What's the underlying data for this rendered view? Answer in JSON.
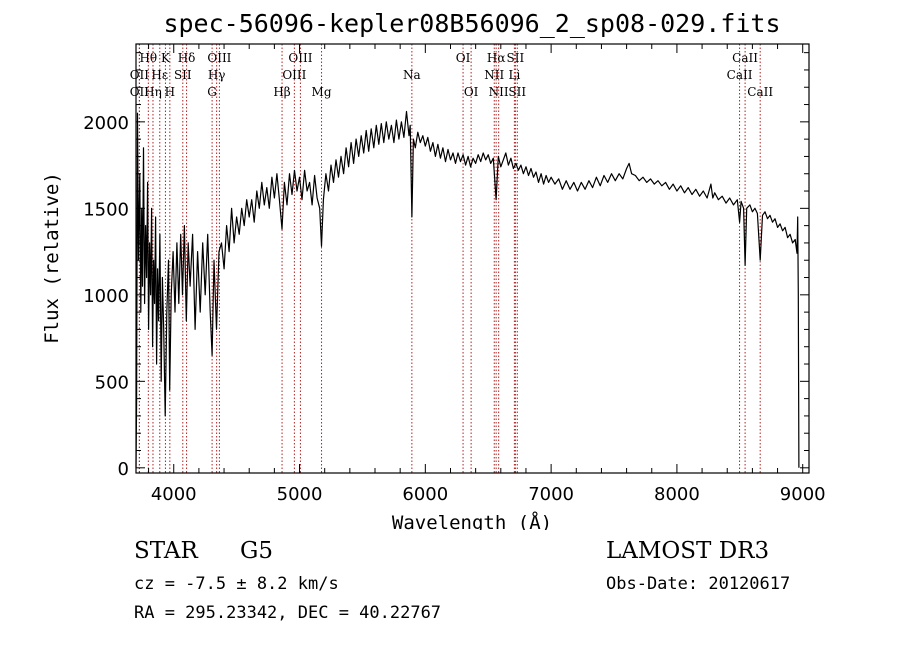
{
  "chart_data": {
    "type": "line",
    "title": "spec-56096-kepler08B56096_2_sp08-029.fits",
    "xlabel": "Wavelength (Å)",
    "ylabel": "Flux (relative)",
    "xlim": [
      3700,
      9050
    ],
    "ylim": [
      -30,
      2450
    ],
    "xticks": [
      4000,
      5000,
      6000,
      7000,
      8000,
      9000
    ],
    "yticks": [
      0,
      500,
      1000,
      1500,
      2000
    ],
    "line_color": "#000000",
    "marker_color": "#b22222",
    "spectral_lines": [
      {
        "label": "Hθ",
        "x": 3798,
        "row": 0
      },
      {
        "label": "OII",
        "x": 3727,
        "row": 1
      },
      {
        "label": "OII",
        "x": 3727,
        "row": 2
      },
      {
        "label": "Hη",
        "x": 3835,
        "row": 2
      },
      {
        "label": "Hε",
        "x": 3889,
        "row": 1
      },
      {
        "label": "K",
        "x": 3934,
        "row": 0
      },
      {
        "label": "H",
        "x": 3969,
        "row": 2
      },
      {
        "label": "SII",
        "x": 4072,
        "row": 1
      },
      {
        "label": "Hδ",
        "x": 4102,
        "row": 0
      },
      {
        "label": "OIII",
        "x": 4363,
        "row": 0
      },
      {
        "label": "Hγ",
        "x": 4341,
        "row": 1
      },
      {
        "label": "G",
        "x": 4305,
        "row": 2
      },
      {
        "label": "Hβ",
        "x": 4861,
        "row": 2
      },
      {
        "label": "OIII",
        "x": 5007,
        "row": 0
      },
      {
        "label": "OIII",
        "x": 4959,
        "row": 1
      },
      {
        "label": "Mg",
        "x": 5175,
        "row": 2
      },
      {
        "label": "Na",
        "x": 5893,
        "row": 1
      },
      {
        "label": "OI",
        "x": 6300,
        "row": 0
      },
      {
        "label": "OI",
        "x": 6364,
        "row": 2
      },
      {
        "label": "Hα",
        "x": 6563,
        "row": 0
      },
      {
        "label": "NII",
        "x": 6548,
        "row": 1
      },
      {
        "label": "NII",
        "x": 6583,
        "row": 2
      },
      {
        "label": "SII",
        "x": 6716,
        "row": 0
      },
      {
        "label": "Li",
        "x": 6708,
        "row": 1
      },
      {
        "label": "SII",
        "x": 6731,
        "row": 2
      },
      {
        "label": "CaII",
        "x": 8542,
        "row": 0
      },
      {
        "label": "CaII",
        "x": 8498,
        "row": 1
      },
      {
        "label": "CaII",
        "x": 8662,
        "row": 2
      }
    ],
    "series": [
      {
        "name": "flux",
        "points": [
          [
            3700,
            0
          ],
          [
            3705,
            380
          ],
          [
            3712,
            2050
          ],
          [
            3720,
            1200
          ],
          [
            3730,
            1700
          ],
          [
            3738,
            900
          ],
          [
            3745,
            1500
          ],
          [
            3752,
            1050
          ],
          [
            3760,
            1850
          ],
          [
            3768,
            950
          ],
          [
            3776,
            1400
          ],
          [
            3784,
            1100
          ],
          [
            3792,
            1650
          ],
          [
            3800,
            800
          ],
          [
            3808,
            1300
          ],
          [
            3816,
            1000
          ],
          [
            3824,
            1500
          ],
          [
            3832,
            700
          ],
          [
            3840,
            1200
          ],
          [
            3848,
            950
          ],
          [
            3856,
            1450
          ],
          [
            3864,
            600
          ],
          [
            3872,
            1150
          ],
          [
            3880,
            850
          ],
          [
            3890,
            1350
          ],
          [
            3900,
            500
          ],
          [
            3910,
            1100
          ],
          [
            3920,
            800
          ],
          [
            3932,
            300
          ],
          [
            3945,
            900
          ],
          [
            3958,
            1200
          ],
          [
            3968,
            450
          ],
          [
            3980,
            1000
          ],
          [
            3995,
            1250
          ],
          [
            4010,
            900
          ],
          [
            4025,
            1300
          ],
          [
            4040,
            950
          ],
          [
            4055,
            1350
          ],
          [
            4070,
            1000
          ],
          [
            4085,
            1400
          ],
          [
            4100,
            850
          ],
          [
            4115,
            1300
          ],
          [
            4130,
            1050
          ],
          [
            4150,
            1350
          ],
          [
            4170,
            800
          ],
          [
            4190,
            1250
          ],
          [
            4210,
            900
          ],
          [
            4230,
            1300
          ],
          [
            4250,
            1000
          ],
          [
            4270,
            1350
          ],
          [
            4290,
            900
          ],
          [
            4305,
            650
          ],
          [
            4320,
            1200
          ],
          [
            4340,
            800
          ],
          [
            4360,
            1250
          ],
          [
            4380,
            1300
          ],
          [
            4400,
            1150
          ],
          [
            4420,
            1400
          ],
          [
            4440,
            1250
          ],
          [
            4460,
            1500
          ],
          [
            4480,
            1300
          ],
          [
            4500,
            1450
          ],
          [
            4520,
            1350
          ],
          [
            4540,
            1500
          ],
          [
            4560,
            1400
          ],
          [
            4580,
            1550
          ],
          [
            4600,
            1450
          ],
          [
            4620,
            1550
          ],
          [
            4640,
            1420
          ],
          [
            4660,
            1600
          ],
          [
            4680,
            1500
          ],
          [
            4700,
            1650
          ],
          [
            4720,
            1520
          ],
          [
            4740,
            1620
          ],
          [
            4760,
            1500
          ],
          [
            4780,
            1680
          ],
          [
            4800,
            1560
          ],
          [
            4820,
            1700
          ],
          [
            4840,
            1550
          ],
          [
            4861,
            1380
          ],
          [
            4880,
            1650
          ],
          [
            4900,
            1520
          ],
          [
            4920,
            1700
          ],
          [
            4940,
            1580
          ],
          [
            4960,
            1720
          ],
          [
            4980,
            1600
          ],
          [
            5000,
            1680
          ],
          [
            5020,
            1550
          ],
          [
            5040,
            1720
          ],
          [
            5060,
            1600
          ],
          [
            5080,
            1650
          ],
          [
            5100,
            1520
          ],
          [
            5120,
            1690
          ],
          [
            5140,
            1560
          ],
          [
            5160,
            1500
          ],
          [
            5175,
            1280
          ],
          [
            5190,
            1550
          ],
          [
            5210,
            1700
          ],
          [
            5230,
            1600
          ],
          [
            5250,
            1750
          ],
          [
            5270,
            1650
          ],
          [
            5290,
            1780
          ],
          [
            5310,
            1680
          ],
          [
            5330,
            1800
          ],
          [
            5350,
            1700
          ],
          [
            5370,
            1850
          ],
          [
            5390,
            1740
          ],
          [
            5410,
            1880
          ],
          [
            5430,
            1760
          ],
          [
            5450,
            1900
          ],
          [
            5470,
            1800
          ],
          [
            5490,
            1920
          ],
          [
            5510,
            1820
          ],
          [
            5530,
            1950
          ],
          [
            5550,
            1830
          ],
          [
            5570,
            1960
          ],
          [
            5590,
            1850
          ],
          [
            5610,
            1980
          ],
          [
            5630,
            1870
          ],
          [
            5650,
            1990
          ],
          [
            5670,
            1880
          ],
          [
            5690,
            2000
          ],
          [
            5710,
            1900
          ],
          [
            5730,
            1980
          ],
          [
            5750,
            1880
          ],
          [
            5770,
            2010
          ],
          [
            5790,
            1900
          ],
          [
            5810,
            2000
          ],
          [
            5830,
            1910
          ],
          [
            5850,
            2060
          ],
          [
            5870,
            1920
          ],
          [
            5880,
            1980
          ],
          [
            5893,
            1450
          ],
          [
            5905,
            1900
          ],
          [
            5920,
            1850
          ],
          [
            5940,
            1940
          ],
          [
            5960,
            1880
          ],
          [
            5980,
            1920
          ],
          [
            6000,
            1860
          ],
          [
            6020,
            1910
          ],
          [
            6040,
            1830
          ],
          [
            6060,
            1880
          ],
          [
            6080,
            1800
          ],
          [
            6100,
            1870
          ],
          [
            6120,
            1790
          ],
          [
            6140,
            1850
          ],
          [
            6160,
            1770
          ],
          [
            6180,
            1840
          ],
          [
            6200,
            1780
          ],
          [
            6220,
            1820
          ],
          [
            6240,
            1760
          ],
          [
            6260,
            1820
          ],
          [
            6280,
            1770
          ],
          [
            6300,
            1810
          ],
          [
            6320,
            1750
          ],
          [
            6340,
            1800
          ],
          [
            6360,
            1740
          ],
          [
            6380,
            1790
          ],
          [
            6400,
            1760
          ],
          [
            6420,
            1810
          ],
          [
            6440,
            1770
          ],
          [
            6460,
            1820
          ],
          [
            6480,
            1780
          ],
          [
            6500,
            1810
          ],
          [
            6520,
            1760
          ],
          [
            6540,
            1790
          ],
          [
            6563,
            1550
          ],
          [
            6580,
            1800
          ],
          [
            6600,
            1740
          ],
          [
            6620,
            1780
          ],
          [
            6640,
            1820
          ],
          [
            6660,
            1750
          ],
          [
            6680,
            1790
          ],
          [
            6700,
            1730
          ],
          [
            6720,
            1760
          ],
          [
            6740,
            1720
          ],
          [
            6760,
            1750
          ],
          [
            6780,
            1700
          ],
          [
            6800,
            1740
          ],
          [
            6820,
            1690
          ],
          [
            6840,
            1730
          ],
          [
            6860,
            1680
          ],
          [
            6880,
            1710
          ],
          [
            6900,
            1650
          ],
          [
            6920,
            1700
          ],
          [
            6940,
            1640
          ],
          [
            6960,
            1690
          ],
          [
            6980,
            1650
          ],
          [
            7000,
            1680
          ],
          [
            7030,
            1640
          ],
          [
            7060,
            1670
          ],
          [
            7090,
            1610
          ],
          [
            7120,
            1660
          ],
          [
            7150,
            1610
          ],
          [
            7180,
            1650
          ],
          [
            7210,
            1600
          ],
          [
            7240,
            1650
          ],
          [
            7270,
            1610
          ],
          [
            7300,
            1660
          ],
          [
            7330,
            1620
          ],
          [
            7360,
            1680
          ],
          [
            7390,
            1630
          ],
          [
            7420,
            1690
          ],
          [
            7450,
            1650
          ],
          [
            7480,
            1700
          ],
          [
            7510,
            1660
          ],
          [
            7540,
            1700
          ],
          [
            7570,
            1670
          ],
          [
            7600,
            1730
          ],
          [
            7620,
            1760
          ],
          [
            7640,
            1700
          ],
          [
            7670,
            1690
          ],
          [
            7700,
            1660
          ],
          [
            7730,
            1680
          ],
          [
            7760,
            1650
          ],
          [
            7790,
            1670
          ],
          [
            7820,
            1640
          ],
          [
            7850,
            1660
          ],
          [
            7880,
            1630
          ],
          [
            7910,
            1650
          ],
          [
            7940,
            1610
          ],
          [
            7970,
            1640
          ],
          [
            8000,
            1600
          ],
          [
            8030,
            1630
          ],
          [
            8060,
            1590
          ],
          [
            8090,
            1620
          ],
          [
            8120,
            1580
          ],
          [
            8150,
            1610
          ],
          [
            8180,
            1570
          ],
          [
            8210,
            1600
          ],
          [
            8240,
            1560
          ],
          [
            8270,
            1640
          ],
          [
            8285,
            1560
          ],
          [
            8300,
            1590
          ],
          [
            8330,
            1550
          ],
          [
            8360,
            1570
          ],
          [
            8390,
            1530
          ],
          [
            8420,
            1560
          ],
          [
            8450,
            1520
          ],
          [
            8480,
            1550
          ],
          [
            8498,
            1420
          ],
          [
            8510,
            1540
          ],
          [
            8530,
            1500
          ],
          [
            8542,
            1170
          ],
          [
            8555,
            1500
          ],
          [
            8580,
            1520
          ],
          [
            8600,
            1480
          ],
          [
            8620,
            1500
          ],
          [
            8640,
            1470
          ],
          [
            8662,
            1200
          ],
          [
            8680,
            1460
          ],
          [
            8700,
            1480
          ],
          [
            8720,
            1440
          ],
          [
            8740,
            1460
          ],
          [
            8760,
            1420
          ],
          [
            8780,
            1440
          ],
          [
            8800,
            1390
          ],
          [
            8820,
            1410
          ],
          [
            8840,
            1370
          ],
          [
            8860,
            1390
          ],
          [
            8880,
            1330
          ],
          [
            8900,
            1350
          ],
          [
            8920,
            1300
          ],
          [
            8940,
            1320
          ],
          [
            8955,
            1240
          ],
          [
            8960,
            1450
          ],
          [
            8965,
            1000
          ],
          [
            8970,
            0
          ]
        ]
      }
    ]
  },
  "info": {
    "object_type": "STAR",
    "subclass": "G5",
    "survey": "LAMOST DR3",
    "cz": "cz = -7.5 ± 8.2 km/s",
    "obs_date": "Obs-Date: 20120617",
    "coords": "RA = 295.23342, DEC =  40.22767"
  }
}
